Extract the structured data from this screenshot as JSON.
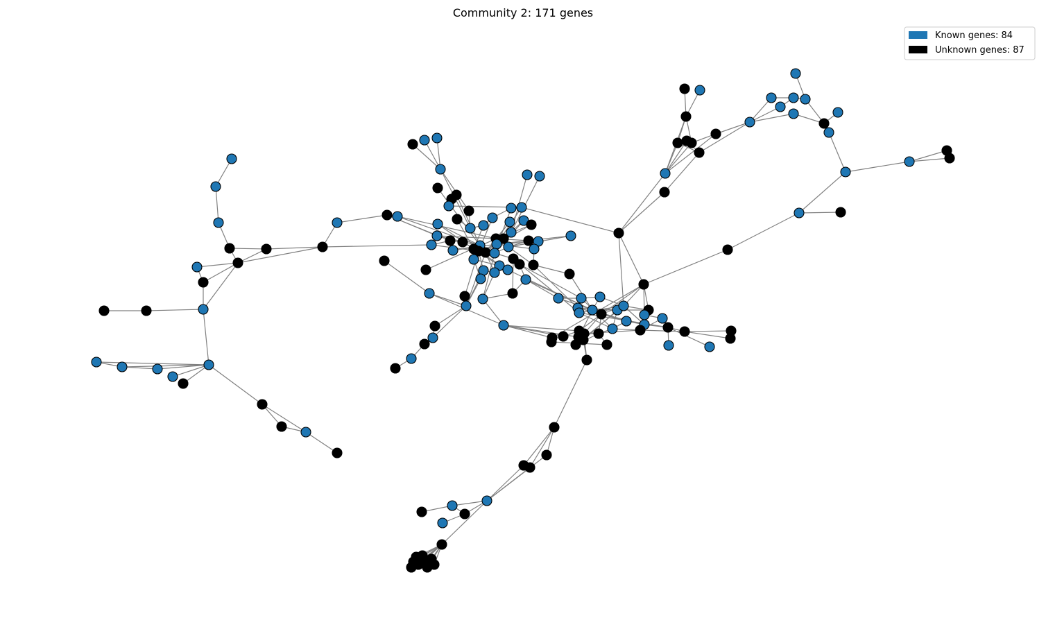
{
  "title": "Community 2: 171 genes",
  "legend": {
    "placement": "top-right",
    "items": [
      {
        "label": "Known genes: 84",
        "color": "#1f77b4",
        "kind": "known"
      },
      {
        "label": "Unknown genes: 87",
        "color": "#000000",
        "kind": "unknown"
      }
    ]
  },
  "colors": {
    "known": "#1f77b4",
    "unknown": "#000000",
    "edge": "#808080"
  }
}
